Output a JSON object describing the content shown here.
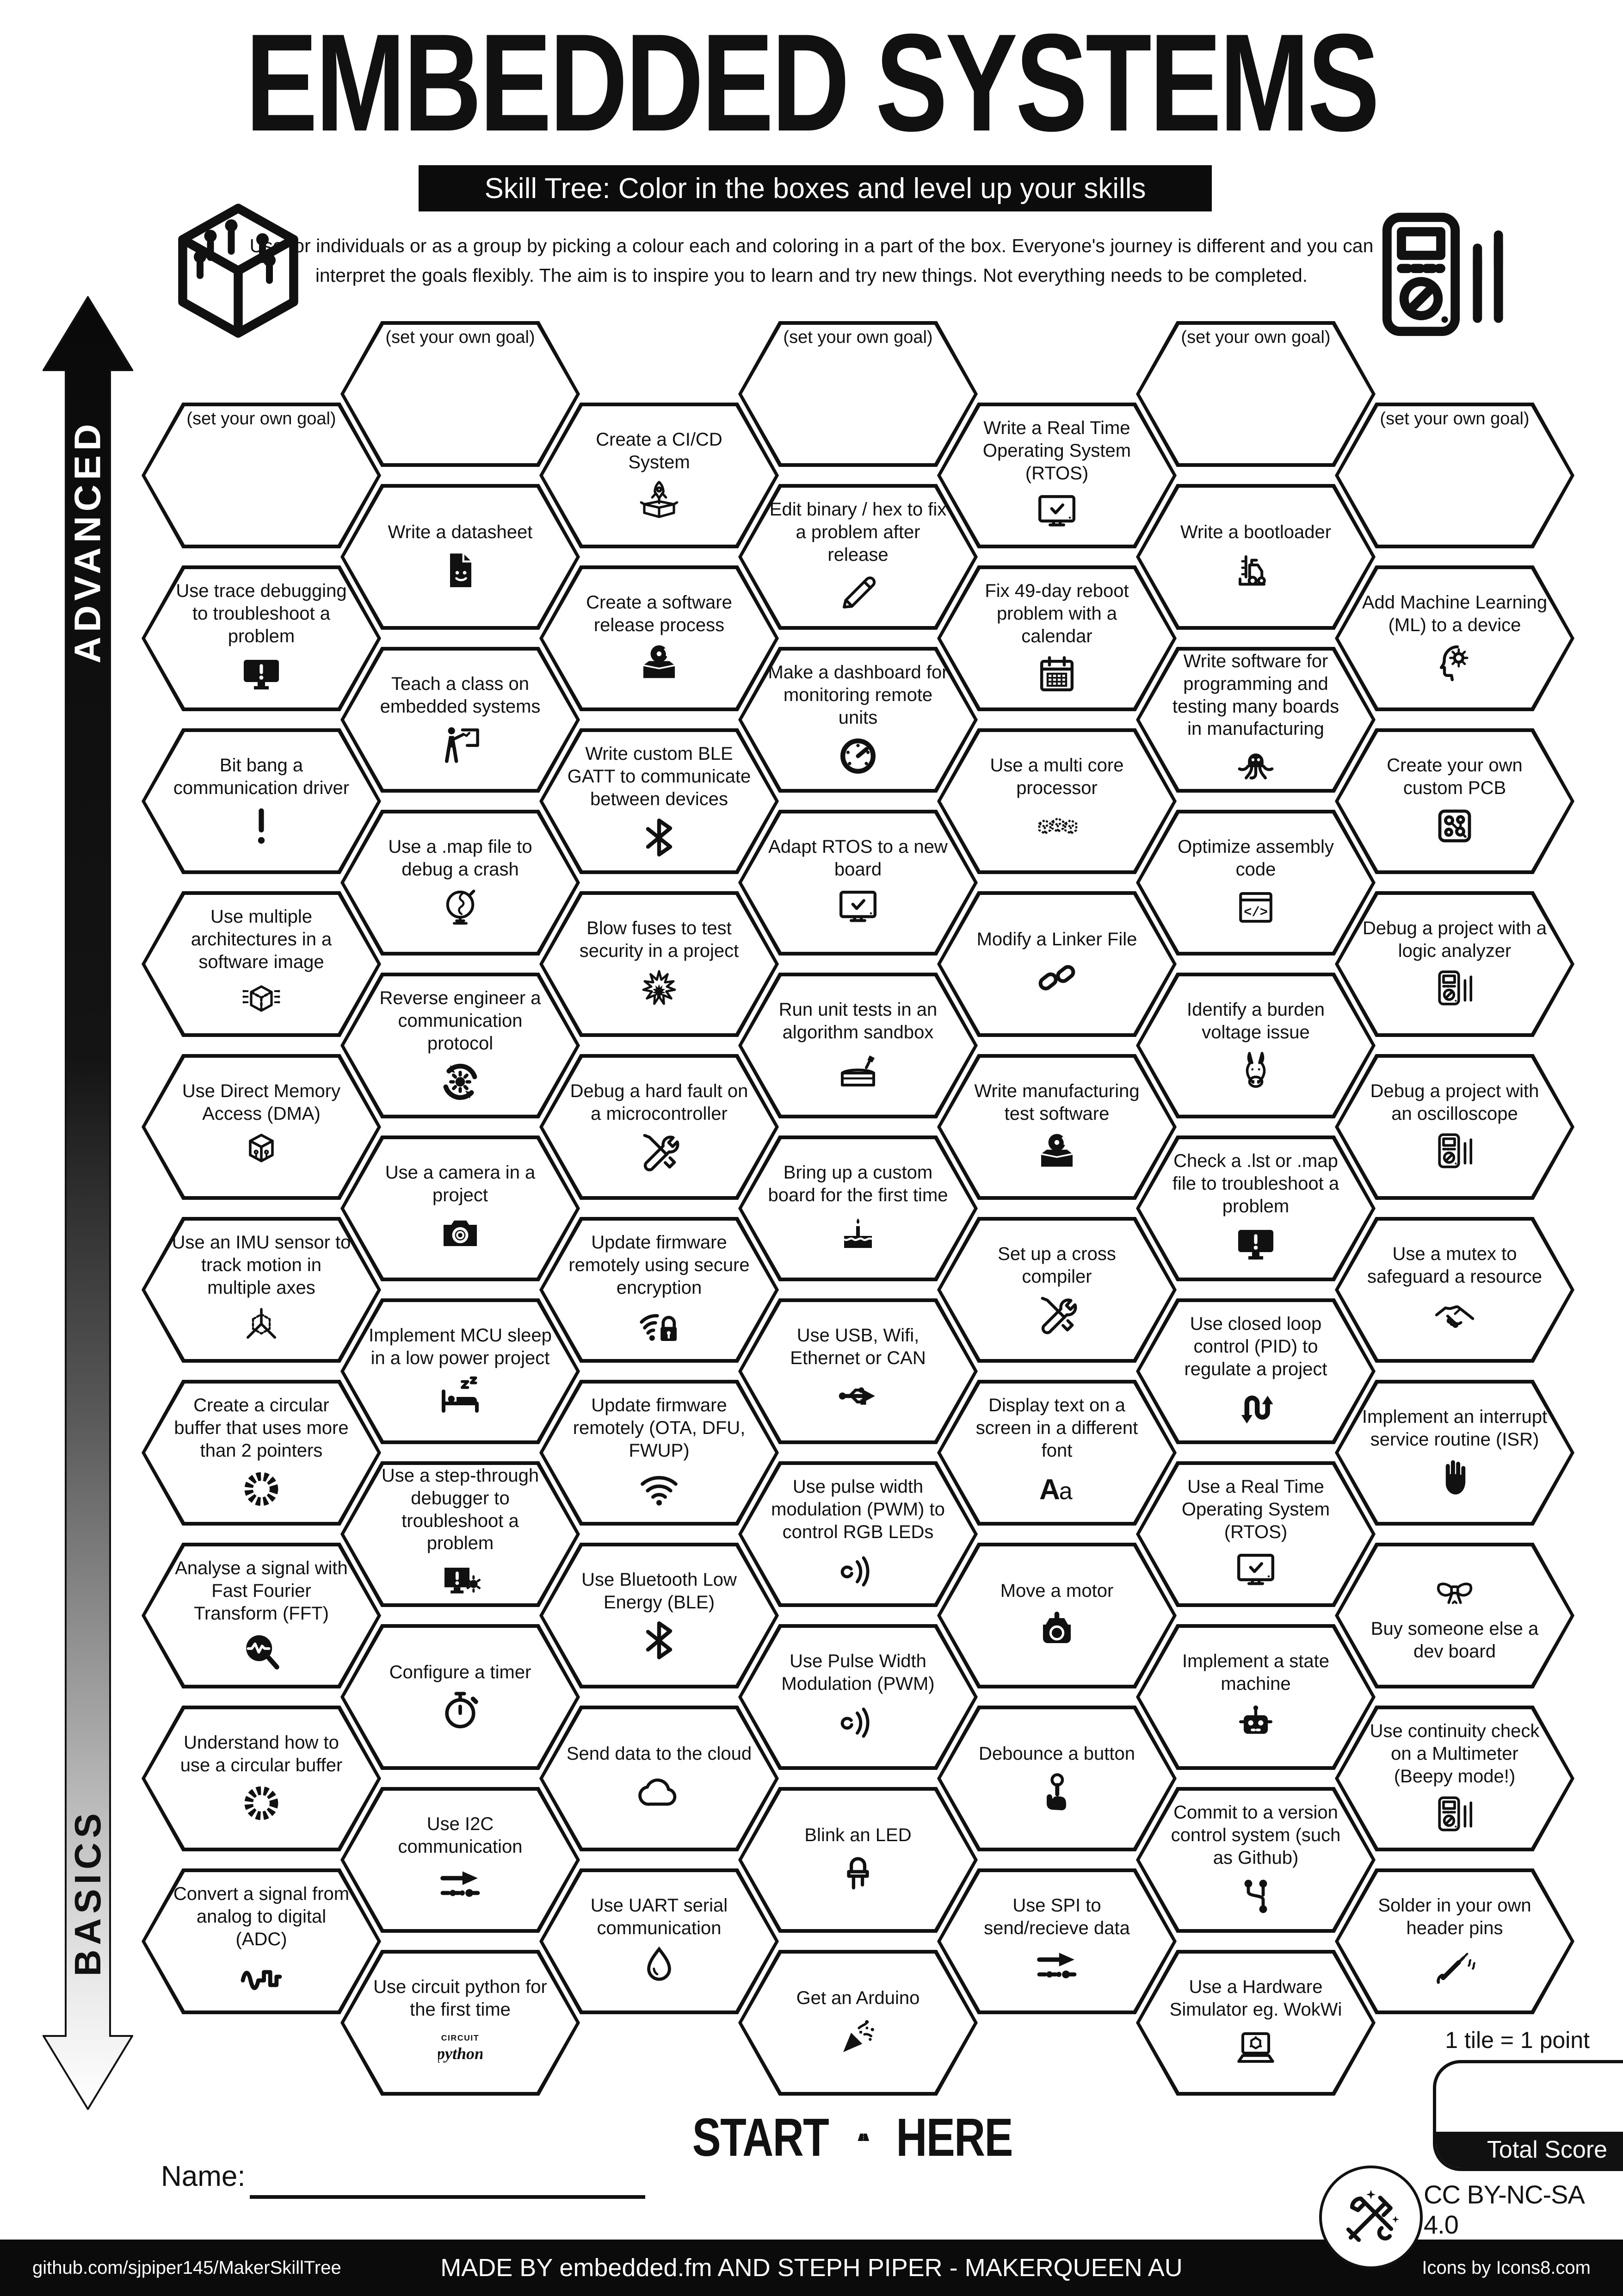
{
  "title": "EMBEDDED SYSTEMS",
  "subtitle": "Skill Tree:  Color in the boxes and level up your skills",
  "description_line1": "Use for individuals or as a group by picking a colour each and coloring in a part of the box.  Everyone's journey is different and you can",
  "description_line2": "interpret the goals flexibly.  The aim is to inspire you to learn and try new things. Not everything needs to be completed.",
  "colors": {
    "ink": "#111111",
    "paper": "#ffffff"
  },
  "axis": {
    "advanced": "ADVANCED",
    "basics": "BASICS"
  },
  "goal_label": "(set your own goal)",
  "header_icons": [
    "circuit-cube-icon",
    "multimeter-icon"
  ],
  "columns": [
    {
      "tiles": [
        {
          "goal": true
        },
        {
          "label": "Use trace debugging to troubleshoot a problem",
          "icon": "monitor-warning"
        },
        {
          "label": "Bit bang a communication driver",
          "icon": "exclamation"
        },
        {
          "label": "Use multiple architectures in a software image",
          "icon": "cube-pins"
        },
        {
          "label": "Use Direct Memory Access (DMA)",
          "icon": "cube-circuit"
        },
        {
          "label": "Use an IMU sensor to track motion in multiple axes",
          "icon": "axes-3d"
        },
        {
          "label": "Create a circular buffer that uses more than 2 pointers",
          "icon": "ring-buffer"
        },
        {
          "label": "Analyse a signal with Fast Fourier Transform (FFT)",
          "icon": "fft-magnifier"
        },
        {
          "label": "Understand how to use a circular buffer",
          "icon": "ring-buffer"
        },
        {
          "label": "Convert a signal from analog to digital (ADC)",
          "icon": "adc-wave"
        }
      ]
    },
    {
      "tiles": [
        {
          "goal": true
        },
        {
          "label": "Write a datasheet",
          "icon": "doc-smiley"
        },
        {
          "label": "Teach a class on embedded systems",
          "icon": "teacher-board"
        },
        {
          "label": "Use a .map file to debug a crash",
          "icon": "globe"
        },
        {
          "label": "Reverse engineer a communication protocol",
          "icon": "gear-arrows"
        },
        {
          "label": "Use a camera in a project",
          "icon": "camera"
        },
        {
          "label": "Implement MCU sleep in a low power project",
          "icon": "bed-sleep"
        },
        {
          "label": "Use a step-through debugger to troubleshoot a problem",
          "icon": "monitor-bug"
        },
        {
          "label": "Configure a timer",
          "icon": "stopwatch"
        },
        {
          "label": "Use I2C communication",
          "icon": "bus-arrow"
        },
        {
          "label": "Use circuit python for the first time",
          "icon": "circuitpython"
        }
      ]
    },
    {
      "tiles": [
        {
          "label": "Create a CI/CD System",
          "icon": "rocket-box"
        },
        {
          "label": "Create a software release process",
          "icon": "toolbox-disc"
        },
        {
          "label": "Write custom BLE GATT to communicate between devices",
          "icon": "bluetooth"
        },
        {
          "label": "Blow fuses to test security in a project",
          "icon": "explosion-burst"
        },
        {
          "label": "Debug a hard fault on a microcontroller",
          "icon": "tools-crossed"
        },
        {
          "label": "Update firmware remotely using secure encryption",
          "icon": "wifi-lock"
        },
        {
          "label": "Update firmware remotely (OTA, DFU, FWUP)",
          "icon": "wifi"
        },
        {
          "label": "Use Bluetooth Low Energy (BLE)",
          "icon": "bluetooth"
        },
        {
          "label": "Send data to the cloud",
          "icon": "cloud"
        },
        {
          "label": "Use UART serial communication",
          "icon": "water-drop"
        }
      ]
    },
    {
      "tiles": [
        {
          "goal": true
        },
        {
          "label": "Edit binary / hex to fix a problem after release",
          "icon": "pencil"
        },
        {
          "label": "Make a dashboard for monitoring remote units",
          "icon": "gauge-dashboard"
        },
        {
          "label": "Adapt RTOS to a new board",
          "icon": "monitor-check"
        },
        {
          "label": "Run unit tests in an algorithm sandbox",
          "icon": "sandbox-shovel"
        },
        {
          "label": "Bring up a custom board for the first time",
          "icon": "birthday-cake"
        },
        {
          "label": "Use USB, Wifi, Ethernet or CAN",
          "icon": "usb-trident"
        },
        {
          "label": "Use pulse width modulation (PWM) to control RGB LEDs",
          "icon": "pwm-waves"
        },
        {
          "label": "Use Pulse Width Modulation (PWM)",
          "icon": "pwm-waves"
        },
        {
          "label": "Blink an LED",
          "icon": "led"
        },
        {
          "label": "Get an Arduino",
          "icon": "party-popper"
        }
      ]
    },
    {
      "tiles": [
        {
          "label": "Write a Real Time Operating System (RTOS)",
          "icon": "monitor-check"
        },
        {
          "label": "Fix 49-day reboot problem with a calendar",
          "icon": "calendar"
        },
        {
          "label": "Use a multi core processor",
          "icon": "cubes-three"
        },
        {
          "label": "Modify a Linker File",
          "icon": "chain-link"
        },
        {
          "label": "Write manufacturing test software",
          "icon": "toolbox-disc"
        },
        {
          "label": "Set up a cross compiler",
          "icon": "tools-crossed"
        },
        {
          "label": "Display text on a screen in a different font",
          "icon": "font-aa"
        },
        {
          "label": "Move a motor",
          "icon": "motor"
        },
        {
          "label": "Debounce a button",
          "icon": "finger-button"
        },
        {
          "label": "Use SPI to send/recieve data",
          "icon": "bus-arrow"
        }
      ]
    },
    {
      "tiles": [
        {
          "goal": true
        },
        {
          "label": "Write a bootloader",
          "icon": "forklift"
        },
        {
          "label": "Write software for programming and testing many boards in manufacturing",
          "icon": "octopus"
        },
        {
          "label": "Optimize assembly code",
          "icon": "code-window"
        },
        {
          "label": "Identify a burden voltage issue",
          "icon": "donkey-head"
        },
        {
          "label": "Check a .lst or .map file to troubleshoot a problem",
          "icon": "monitor-warning"
        },
        {
          "label": "Use closed loop control (PID) to regulate a project",
          "icon": "loop-arrows"
        },
        {
          "label": "Use a Real Time Operating System (RTOS)",
          "icon": "monitor-check"
        },
        {
          "label": "Implement a state machine",
          "icon": "robot-head"
        },
        {
          "label": "Commit to a version control system (such as Github)",
          "icon": "git-branch"
        },
        {
          "label": "Use a Hardware Simulator eg. WokWi",
          "icon": "laptop-simulator"
        }
      ]
    },
    {
      "tiles": [
        {
          "goal": true
        },
        {
          "label": "Add Machine Learning (ML) to a device",
          "icon": "head-gear"
        },
        {
          "label": "Create your own custom PCB",
          "icon": "pcb-board"
        },
        {
          "label": "Debug a project with a logic analyzer",
          "icon": "multimeter-probes"
        },
        {
          "label": "Debug a project with an oscilloscope",
          "icon": "multimeter-probes"
        },
        {
          "label": "Use a mutex to safeguard a resource",
          "icon": "handshake"
        },
        {
          "label": "Implement an interrupt service routine (ISR)",
          "icon": "hand-stop"
        },
        {
          "label": "Buy someone else a dev board",
          "icon": "gift-bow",
          "icon_first": true
        },
        {
          "label": "Use continuity check on a Multimeter (Beepy mode!)",
          "icon": "multimeter-probes"
        },
        {
          "label": "Solder in your own header pins",
          "icon": "soldering-iron"
        }
      ]
    }
  ],
  "name_label": "Name:",
  "start_here": {
    "start": "START",
    "here": "HERE"
  },
  "scoring": {
    "tile_point": "1 tile = 1 point",
    "total_score": "Total Score"
  },
  "license": "CC BY-NC-SA 4.0",
  "footer": {
    "left": "github.com/sjpiper145/MakerSkillTree",
    "center": "MADE BY embedded.fm AND STEPH PIPER - MAKERQUEEN AU",
    "right": "Icons by Icons8.com"
  }
}
